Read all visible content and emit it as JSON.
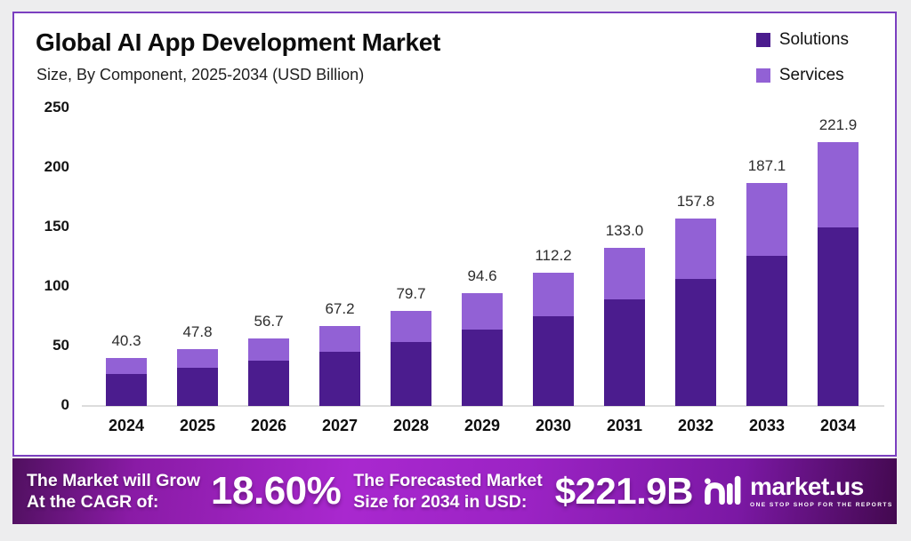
{
  "header": {
    "title": "Global AI App Development Market",
    "subtitle": "Size, By Component, 2025-2034 (USD Billion)"
  },
  "legend": [
    {
      "label": "Solutions",
      "color": "#4b1c8e"
    },
    {
      "label": "Services",
      "color": "#9261d5"
    }
  ],
  "chart_data": {
    "type": "bar",
    "stacked": true,
    "title": "Global AI App Development Market Size, By Component, 2025-2034 (USD Billion)",
    "categories": [
      "2024",
      "2025",
      "2026",
      "2027",
      "2028",
      "2029",
      "2030",
      "2031",
      "2032",
      "2033",
      "2034"
    ],
    "series": [
      {
        "name": "Solutions",
        "color": "#4b1c8e",
        "values": [
          27.2,
          32.3,
          38.3,
          45.4,
          53.8,
          63.9,
          75.7,
          89.8,
          106.5,
          126.3,
          149.8
        ]
      },
      {
        "name": "Services",
        "color": "#9261d5",
        "values": [
          13.1,
          15.5,
          18.4,
          21.8,
          25.9,
          30.7,
          36.5,
          43.2,
          51.3,
          60.8,
          72.1
        ]
      }
    ],
    "totals": [
      "40.3",
      "47.8",
      "56.7",
      "67.2",
      "79.7",
      "94.6",
      "112.2",
      "133.0",
      "157.8",
      "187.1",
      "221.9"
    ],
    "xlabel": "",
    "ylabel": "",
    "ylim": [
      0,
      250
    ],
    "yticks": [
      0,
      50,
      100,
      150,
      200,
      250
    ],
    "grid": false,
    "legend_position": "top-right"
  },
  "banner": {
    "left_line1": "The Market will Grow",
    "left_line2": "At the CAGR of:",
    "cagr": "18.60%",
    "right_line1": "The Forecasted Market",
    "right_line2": "Size for 2034 in USD:",
    "forecast_value": "$221.9B"
  },
  "logo": {
    "name": "market.us",
    "tagline": "ONE STOP SHOP FOR THE REPORTS"
  }
}
